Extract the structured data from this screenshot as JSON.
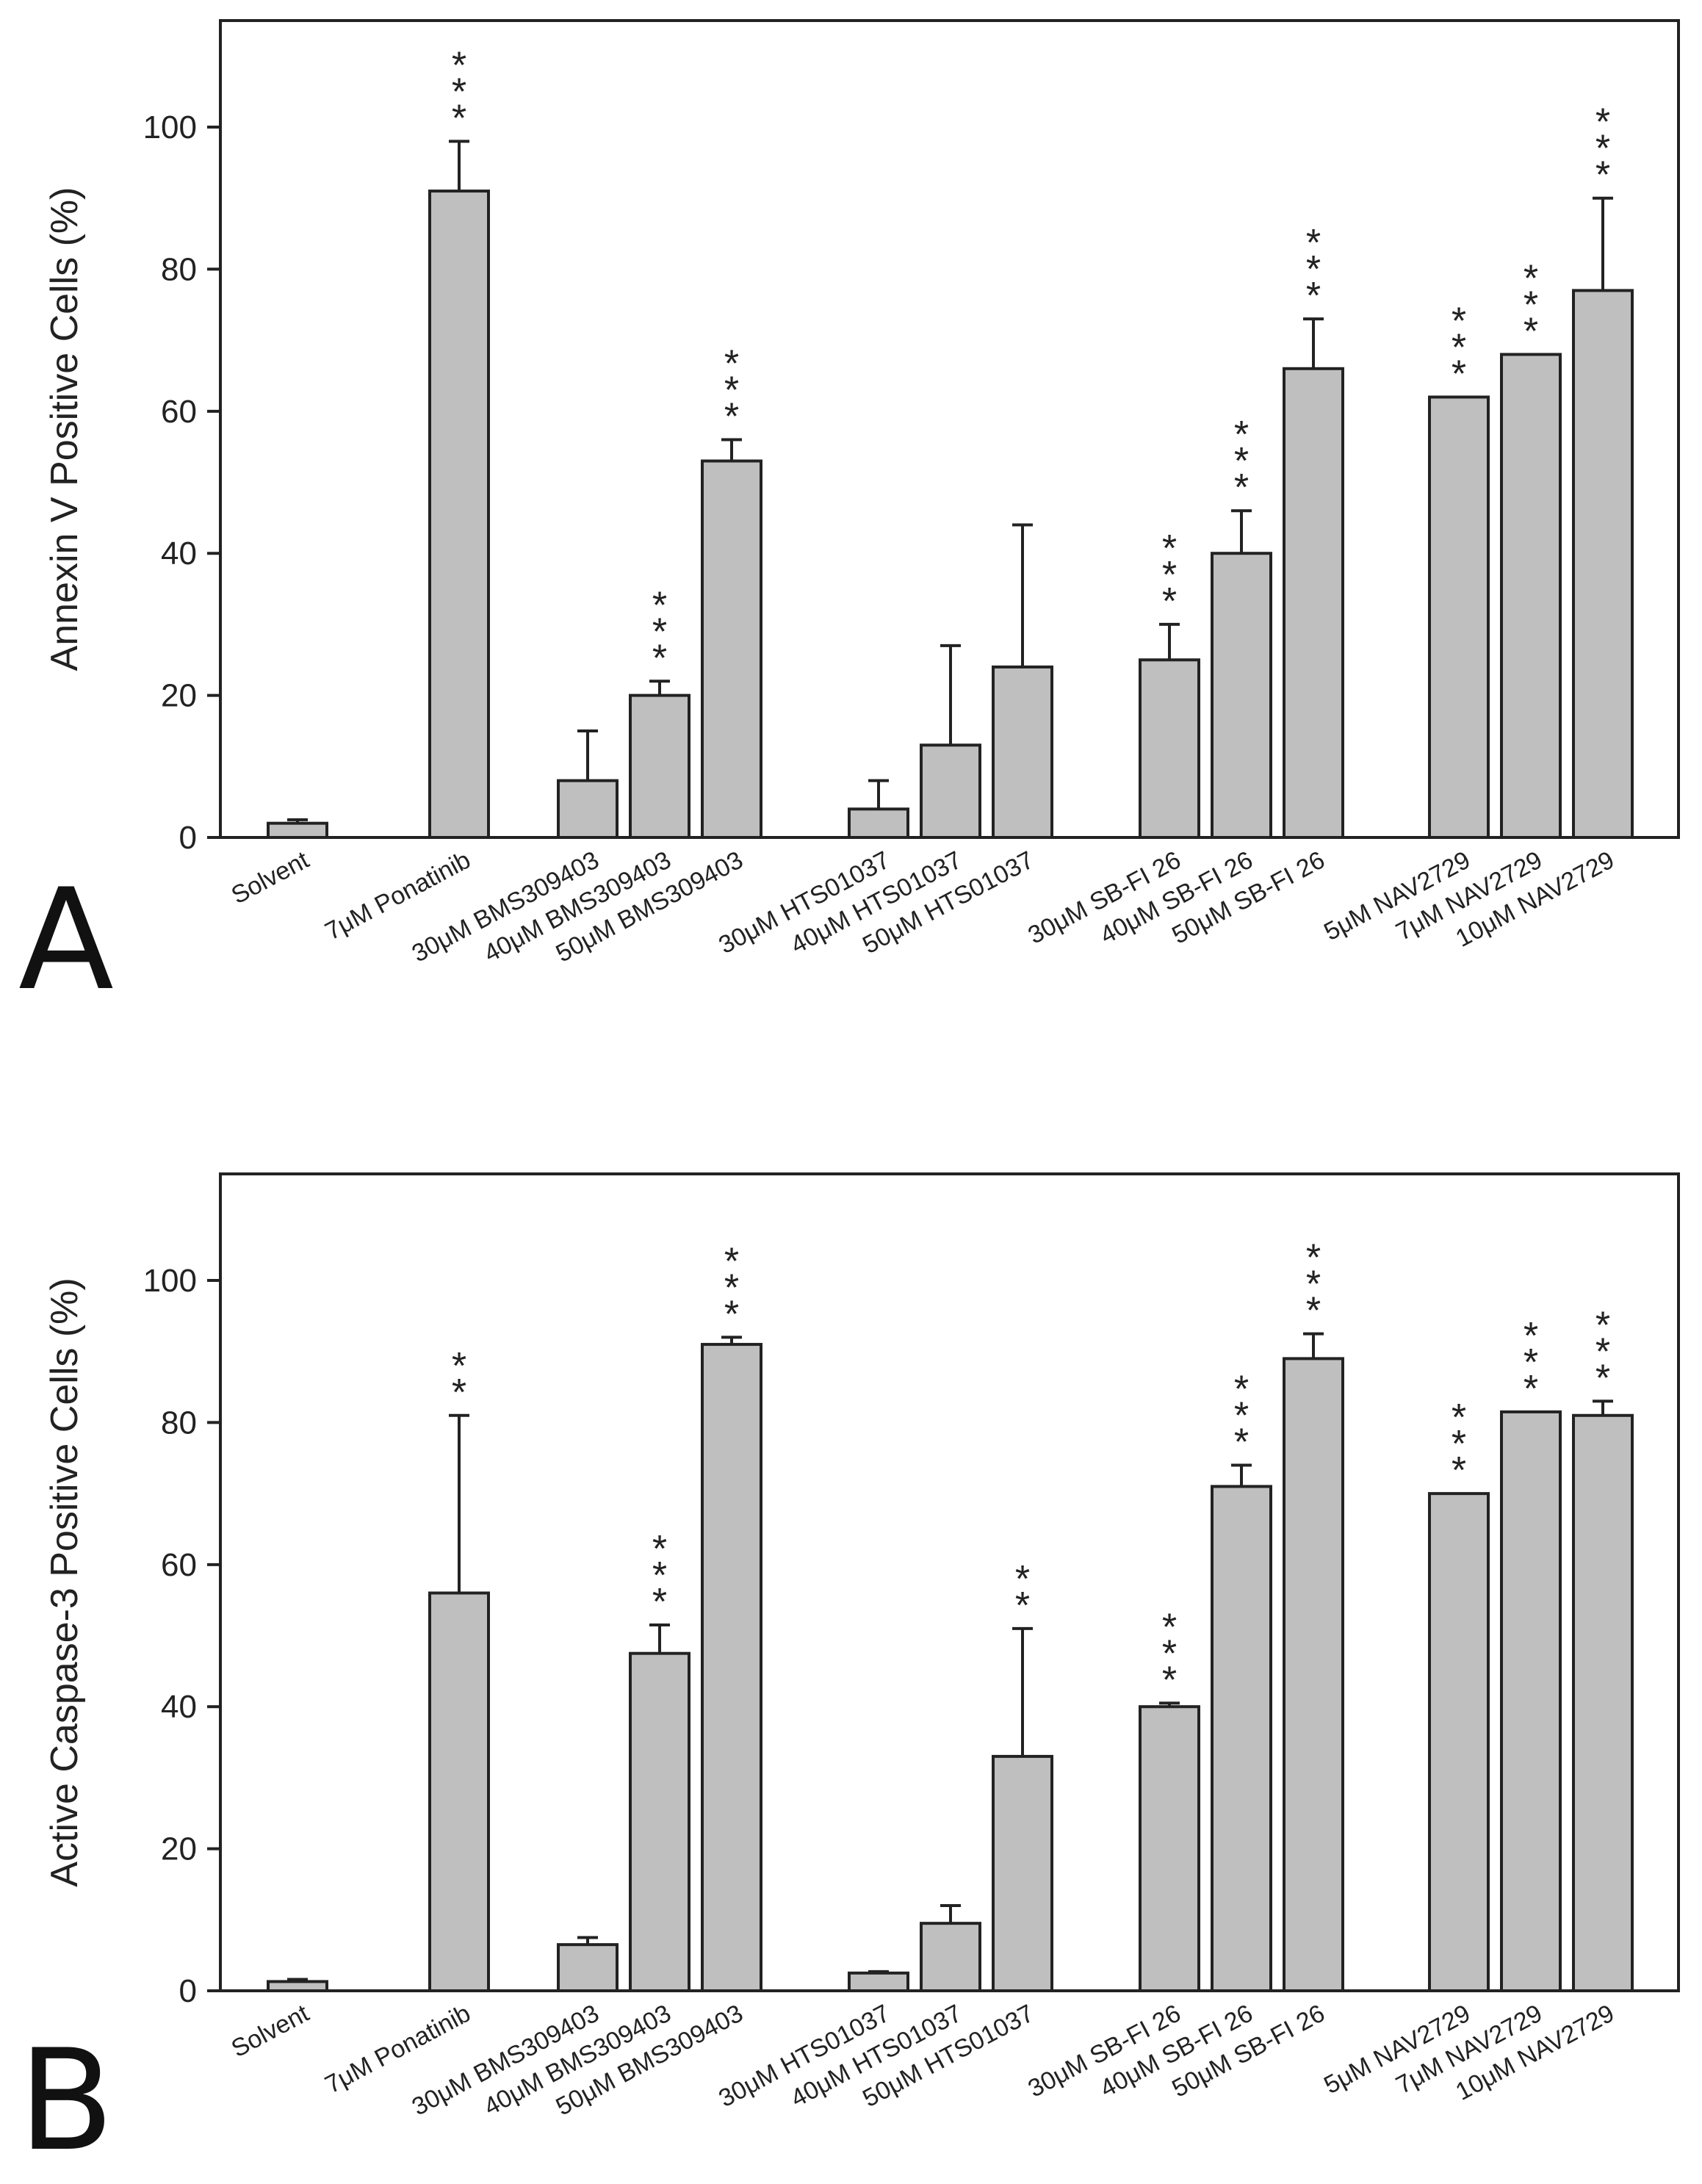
{
  "chart_data": [
    {
      "type": "bar",
      "panel_label": "A",
      "ylabel": "Annexin V Positive Cells (%)",
      "ylim": [
        0,
        115
      ],
      "yticks": [
        0,
        20,
        40,
        60,
        80,
        100
      ],
      "categories": [
        "Solvent",
        "7μM Ponatinib",
        "30μM BMS309403",
        "40μM BMS309403",
        "50μM BMS309403",
        "30μM HTS01037",
        "40μM HTS01037",
        "50μM HTS01037",
        "30μM SB-FI 26",
        "40μM SB-FI 26",
        "50μM SB-FI 26",
        "5μM NAV2729",
        "7μM NAV2729",
        "10μM NAV2729"
      ],
      "values": [
        2,
        91,
        8,
        20,
        53,
        4,
        13,
        24,
        25,
        40,
        66,
        62,
        68,
        77
      ],
      "errors": [
        0.5,
        7,
        7,
        2,
        3,
        4,
        14,
        20,
        5,
        6,
        7,
        0,
        0,
        13
      ],
      "significance": [
        "",
        "***",
        "",
        "***",
        "***",
        "",
        "",
        "",
        "***",
        "***",
        "***",
        "***",
        "***",
        "***"
      ],
      "grid": false
    },
    {
      "type": "bar",
      "panel_label": "B",
      "ylabel": "Active Caspase-3 Positive Cells (%)",
      "ylim": [
        0,
        115
      ],
      "yticks": [
        0,
        20,
        40,
        60,
        80,
        100
      ],
      "categories": [
        "Solvent",
        "7μM Ponatinib",
        "30μM BMS309403",
        "40μM BMS309403",
        "50μM BMS309403",
        "30μM HTS01037",
        "40μM HTS01037",
        "50μM HTS01037",
        "30μM SB-FI 26",
        "40μM SB-FI 26",
        "50μM SB-FI 26",
        "5μM NAV2729",
        "7μM NAV2729",
        "10μM NAV2729"
      ],
      "values": [
        1.3,
        56,
        6.5,
        47.5,
        91,
        2.5,
        9.5,
        33,
        40,
        71,
        89,
        70,
        81.5,
        81
      ],
      "errors": [
        0.3,
        25,
        1,
        4,
        1,
        0.2,
        2.5,
        18,
        0.5,
        3,
        3.5,
        0,
        0,
        2
      ],
      "significance": [
        "",
        "**",
        "",
        "***",
        "***",
        "",
        "",
        "**",
        "***",
        "***",
        "***",
        "***",
        "***",
        "***"
      ],
      "grid": false
    }
  ]
}
